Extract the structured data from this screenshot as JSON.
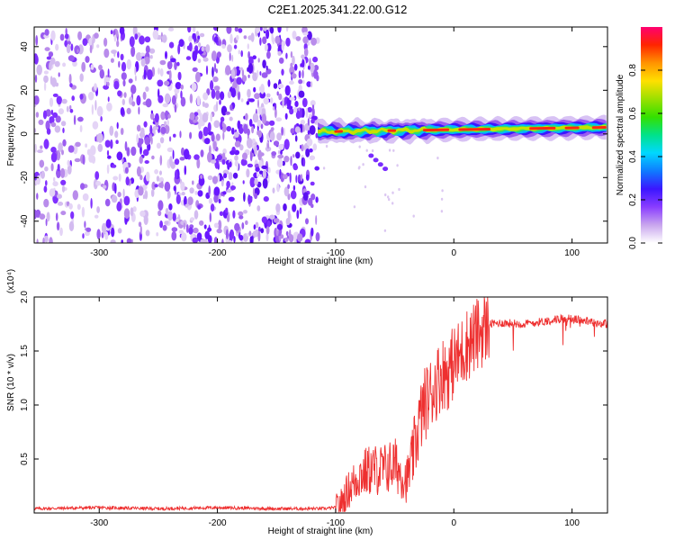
{
  "title": "C2E1.2025.341.22.00.G12",
  "chart_data": [
    {
      "type": "heatmap",
      "name": "spectrogram",
      "xlabel": "Height of straight line (km)",
      "ylabel": "Frequency (Hz)",
      "xlim": [
        -355,
        130
      ],
      "ylim": [
        -50,
        49
      ],
      "xticks": [
        -300,
        -200,
        -100,
        0,
        100
      ],
      "xtick_labels": [
        "-300",
        "-200",
        "-100",
        "0",
        "100"
      ],
      "yticks": [
        -40,
        -20,
        0,
        20,
        40
      ],
      "ytick_labels": [
        "-40",
        "-20",
        "0",
        "20",
        "40"
      ],
      "noise_region_x": [
        -355,
        -115
      ],
      "signal_line": {
        "x": [
          -115,
          130
        ],
        "frequency_hz": [
          1,
          3
        ]
      },
      "colorbar": {
        "label": "Normalized spectral amplitude",
        "range": [
          0,
          1
        ],
        "ticks": [
          0.0,
          0.2,
          0.4,
          0.6,
          0.8
        ],
        "tick_labels": [
          "0.0",
          "0.2",
          "0.4",
          "0.6",
          "0.8"
        ],
        "colors": [
          "#ffffff",
          "#c9a6ee",
          "#8a3dff",
          "#3b16ff",
          "#0f7bff",
          "#00d8ff",
          "#00e28a",
          "#34e000",
          "#9be000",
          "#ffe000",
          "#ff9400",
          "#ff2500",
          "#ff0070"
        ]
      }
    },
    {
      "type": "line",
      "name": "snr",
      "xlabel": "Height of straight line (km)",
      "ylabel": "SNR (10 * v/v)",
      "yscale_note": "(x10⁴)",
      "xlim": [
        -355,
        130
      ],
      "ylim": [
        0,
        2.0
      ],
      "xticks": [
        -300,
        -200,
        -100,
        0,
        100
      ],
      "xtick_labels": [
        "-300",
        "-200",
        "-100",
        "0",
        "100"
      ],
      "yticks": [
        0.5,
        1.0,
        1.5,
        2.0
      ],
      "ytick_labels": [
        "0.5",
        "1.0",
        "1.5",
        "2.0"
      ],
      "color": "#ee3030",
      "x": [
        -355,
        -300,
        -250,
        -200,
        -150,
        -110,
        -100,
        -95,
        -90,
        -80,
        -70,
        -60,
        -50,
        -40,
        -35,
        -30,
        -25,
        -20,
        -15,
        -10,
        -5,
        0,
        5,
        10,
        20,
        30,
        40,
        60,
        80,
        90,
        95,
        100,
        110,
        120,
        130
      ],
      "y": [
        0.04,
        0.05,
        0.04,
        0.05,
        0.04,
        0.04,
        0.05,
        0.1,
        0.2,
        0.35,
        0.4,
        0.4,
        0.45,
        0.3,
        0.5,
        0.8,
        1.0,
        1.1,
        1.2,
        1.3,
        1.3,
        1.4,
        1.45,
        1.55,
        1.65,
        1.75,
        1.76,
        1.75,
        1.78,
        1.8,
        1.8,
        1.8,
        1.78,
        1.76,
        1.75
      ]
    }
  ]
}
